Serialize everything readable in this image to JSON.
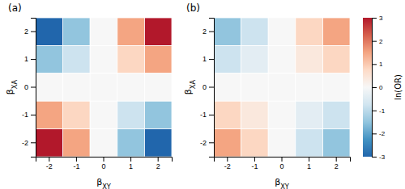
{
  "chart_data": [
    {
      "type": "heatmap",
      "title": "(a)",
      "xlabel": "βXY",
      "ylabel": "βXA",
      "x": [
        -2,
        -1,
        0,
        1,
        2
      ],
      "y": [
        2,
        1,
        0,
        -1,
        -2
      ],
      "values": [
        [
          -3.0,
          -1.5,
          0.0,
          1.5,
          3.0
        ],
        [
          -1.5,
          -0.8,
          0.0,
          0.8,
          1.5
        ],
        [
          0.0,
          0.0,
          0.0,
          0.0,
          0.0
        ],
        [
          1.5,
          0.8,
          0.0,
          -0.8,
          -1.5
        ],
        [
          3.0,
          1.5,
          0.0,
          -1.5,
          -3.0
        ]
      ]
    },
    {
      "type": "heatmap",
      "title": "(b)",
      "xlabel": "βXY",
      "ylabel": "βXA",
      "x": [
        -2,
        -1,
        0,
        1,
        2
      ],
      "y": [
        2,
        1,
        0,
        -1,
        -2
      ],
      "values": [
        [
          -1.5,
          -0.8,
          0.0,
          0.8,
          1.5
        ],
        [
          -0.8,
          -0.4,
          0.0,
          0.4,
          0.8
        ],
        [
          0.0,
          0.0,
          0.0,
          0.0,
          0.0
        ],
        [
          0.8,
          0.4,
          0.0,
          -0.4,
          -0.8
        ],
        [
          1.5,
          0.8,
          0.0,
          -0.8,
          -1.5
        ]
      ]
    },
    {
      "type": "colorbar",
      "label": "ln(OR)",
      "range": [
        -3,
        3
      ],
      "ticks": [
        -3,
        -2,
        -1,
        0,
        1,
        2,
        3
      ],
      "colormap": [
        "#2166ac",
        "#4393c3",
        "#92c5de",
        "#d1e5f0",
        "#f7f7f7",
        "#fddbc7",
        "#f4a582",
        "#d6604d",
        "#b2182b"
      ]
    }
  ]
}
